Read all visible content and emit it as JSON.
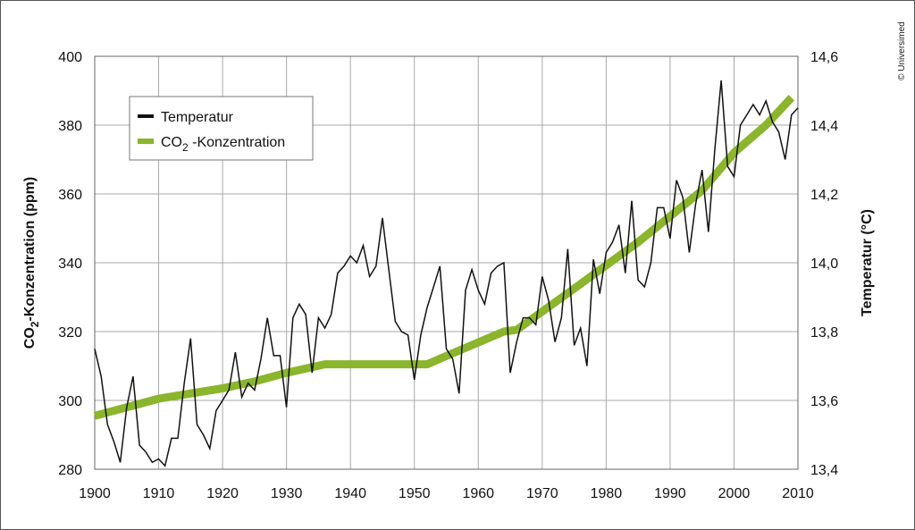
{
  "copyright": "© Universimed",
  "chart_data": {
    "type": "line",
    "xlim": [
      1900,
      2010
    ],
    "x_ticks": [
      "1900",
      "1910",
      "1920",
      "1930",
      "1940",
      "1950",
      "1960",
      "1970",
      "1980",
      "1990",
      "2000",
      "2010"
    ],
    "ylabel": "CO₂-Konzentration (ppm)",
    "ylabel_base": "CO",
    "ylabel_sub": "2",
    "ylabel_rest": "-Konzentration (ppm)",
    "ylim": [
      280,
      400
    ],
    "y_ticks": [
      "280",
      "300",
      "320",
      "340",
      "360",
      "380",
      "400"
    ],
    "y2label": "Temperatur (°C)",
    "y2lim": [
      13.4,
      14.6
    ],
    "y2_ticks": [
      "13,4",
      "13,6",
      "13,8",
      "14,0",
      "14,2",
      "14,4",
      "14,6"
    ],
    "grid": true,
    "legend": {
      "placement": "top-left",
      "items": [
        {
          "label": "Temperatur",
          "color": "#111111"
        },
        {
          "label_base": "CO",
          "label_sub": "2",
          "label_rest": " -Konzentration",
          "color": "#8ab52c"
        }
      ]
    },
    "series": [
      {
        "name": "Temperatur",
        "axis": "right",
        "color": "#111111",
        "x": [
          1900,
          1901,
          1902,
          1903,
          1904,
          1905,
          1906,
          1907,
          1908,
          1909,
          1910,
          1911,
          1912,
          1913,
          1914,
          1915,
          1916,
          1917,
          1918,
          1919,
          1920,
          1921,
          1922,
          1923,
          1924,
          1925,
          1926,
          1927,
          1928,
          1929,
          1930,
          1931,
          1932,
          1933,
          1934,
          1935,
          1936,
          1937,
          1938,
          1939,
          1940,
          1941,
          1942,
          1943,
          1944,
          1945,
          1946,
          1947,
          1948,
          1949,
          1950,
          1951,
          1952,
          1953,
          1954,
          1955,
          1956,
          1957,
          1958,
          1959,
          1960,
          1961,
          1962,
          1963,
          1964,
          1965,
          1966,
          1967,
          1968,
          1969,
          1970,
          1971,
          1972,
          1973,
          1974,
          1975,
          1976,
          1977,
          1978,
          1979,
          1980,
          1981,
          1982,
          1983,
          1984,
          1985,
          1986,
          1987,
          1988,
          1989,
          1990,
          1991,
          1992,
          1993,
          1994,
          1995,
          1996,
          1997,
          1998,
          1999,
          2000,
          2001,
          2002,
          2003,
          2004,
          2005,
          2006,
          2007,
          2008,
          2009,
          2010
        ],
        "values": [
          13.75,
          13.67,
          13.53,
          13.48,
          13.42,
          13.58,
          13.67,
          13.47,
          13.45,
          13.42,
          13.43,
          13.41,
          13.49,
          13.49,
          13.65,
          13.78,
          13.53,
          13.5,
          13.46,
          13.57,
          13.6,
          13.63,
          13.74,
          13.61,
          13.65,
          13.63,
          13.72,
          13.84,
          13.73,
          13.73,
          13.58,
          13.84,
          13.88,
          13.85,
          13.68,
          13.84,
          13.81,
          13.85,
          13.97,
          13.99,
          14.02,
          14.0,
          14.05,
          13.96,
          13.99,
          14.13,
          13.98,
          13.83,
          13.8,
          13.79,
          13.66,
          13.79,
          13.87,
          13.93,
          13.99,
          13.75,
          13.72,
          13.62,
          13.92,
          13.98,
          13.92,
          13.88,
          13.97,
          13.99,
          14.0,
          13.68,
          13.77,
          13.84,
          13.84,
          13.82,
          13.96,
          13.89,
          13.77,
          13.84,
          14.04,
          13.76,
          13.81,
          13.7,
          14.01,
          13.91,
          14.03,
          14.06,
          14.11,
          13.97,
          14.18,
          13.95,
          13.93,
          14.0,
          14.16,
          14.16,
          14.07,
          14.24,
          14.19,
          14.03,
          14.17,
          14.27,
          14.09,
          14.33,
          14.53,
          14.28,
          14.25,
          14.4,
          14.43,
          14.46,
          14.43,
          14.47,
          14.41,
          14.38,
          14.3,
          14.43,
          14.45
        ]
      },
      {
        "name_base": "CO",
        "name_sub": "2",
        "name_rest": " -Konzentration",
        "axis": "left",
        "color": "#8ab52c",
        "x": [
          1900,
          1910,
          1920,
          1925,
          1930,
          1936,
          1945,
          1952,
          1957,
          1964,
          1966,
          1975,
          1985,
          1995,
          2000,
          2005,
          2009
        ],
        "values": [
          295.5,
          300.5,
          303.5,
          305.5,
          308,
          310.5,
          310.5,
          310.5,
          314.5,
          320,
          320.5,
          332.5,
          346,
          361,
          372,
          380,
          388
        ]
      }
    ]
  }
}
